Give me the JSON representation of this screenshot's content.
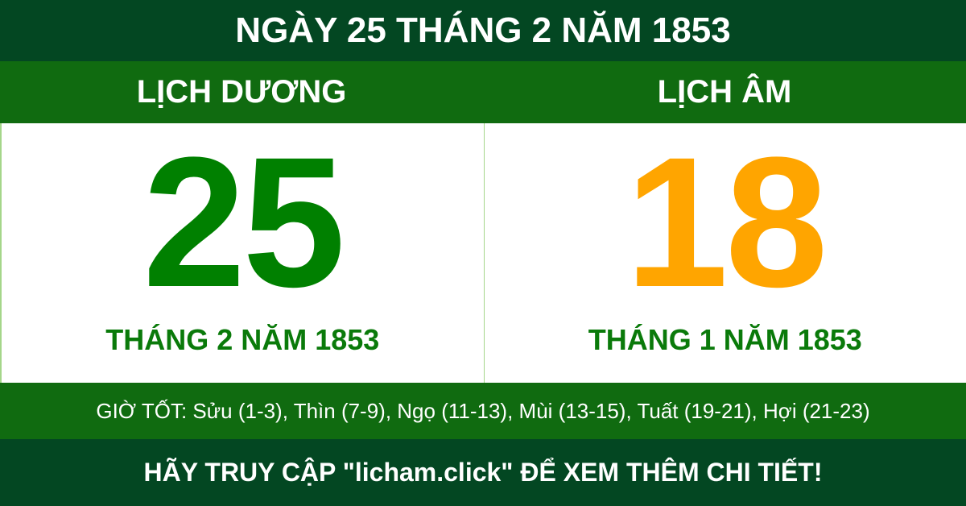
{
  "title": "NGÀY 25 THÁNG 2 NĂM 1853",
  "solar": {
    "label": "LỊCH DƯƠNG",
    "day": "25",
    "month_year": "THÁNG 2 NĂM 1853"
  },
  "lunar": {
    "label": "LỊCH ÂM",
    "day": "18",
    "month_year": "THÁNG 1 NĂM 1853"
  },
  "good_hours": "GIỜ TỐT: Sửu (1-3), Thìn (7-9), Ngọ (11-13), Mùi (13-15), Tuất (19-21), Hợi (21-23)",
  "footer": "HÃY TRUY CẬP \"licham.click\" ĐỂ XEM THÊM CHI TIẾT!",
  "colors": {
    "dark_green": "#034722",
    "green": "#106b10",
    "solar_day": "#008000",
    "lunar_day": "#ffa500"
  }
}
